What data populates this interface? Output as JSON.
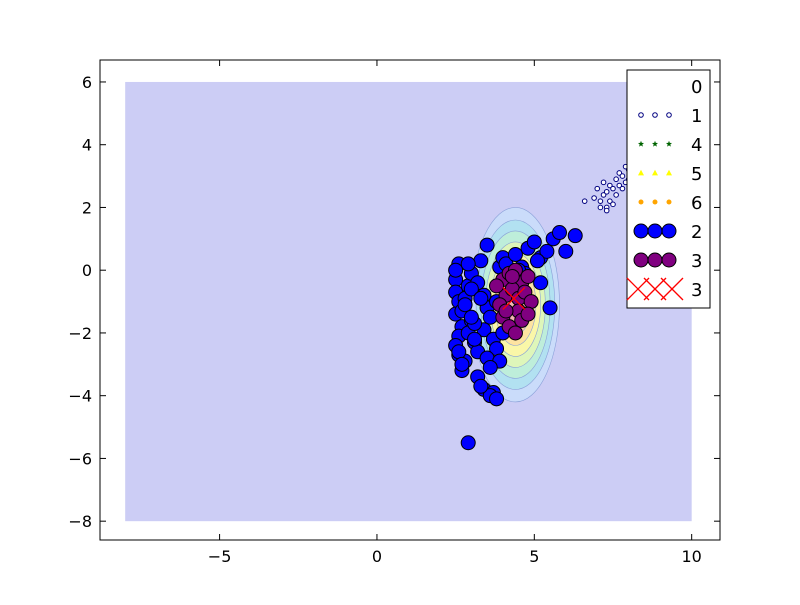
{
  "chart_data": {
    "type": "scatter",
    "title": "",
    "xlabel": "",
    "ylabel": "",
    "xlim": [
      -8.8,
      10.9
    ],
    "ylim": [
      -8.6,
      6.7
    ],
    "xticks": [
      -5,
      0,
      5,
      10
    ],
    "yticks": [
      -8,
      -6,
      -4,
      -2,
      0,
      2,
      4,
      6
    ],
    "grid": false,
    "legend_position": "top-right",
    "background_region": {
      "x": [
        -8,
        10
      ],
      "y": [
        -8,
        6
      ],
      "color": "#cccdf5"
    },
    "density_contours": {
      "center": [
        4.4,
        -1.1
      ],
      "levels": [
        {
          "rx": 1.4,
          "ry": 3.1,
          "color": "#c9dcfa"
        },
        {
          "rx": 1.25,
          "ry": 2.7,
          "color": "#b0e0f0"
        },
        {
          "rx": 1.1,
          "ry": 2.35,
          "color": "#bfeed8"
        },
        {
          "rx": 0.95,
          "ry": 2.0,
          "color": "#dff5b8"
        },
        {
          "rx": 0.8,
          "ry": 1.65,
          "color": "#fbf7a6"
        },
        {
          "rx": 0.65,
          "ry": 1.3,
          "color": "#fde2a0"
        },
        {
          "rx": 0.5,
          "ry": 0.95,
          "color": "#fbc9a8"
        },
        {
          "rx": 0.35,
          "ry": 0.6,
          "color": "#f4b4b4"
        }
      ]
    },
    "series": [
      {
        "name": "0",
        "marker": "none",
        "color": "#ffffff",
        "x": [],
        "y": []
      },
      {
        "name": "1",
        "marker": "circle-open-small",
        "color": "#000080",
        "x": [
          6.9,
          7.0,
          7.1,
          7.2,
          7.2,
          7.3,
          7.3,
          7.4,
          7.4,
          7.5,
          7.5,
          7.6,
          7.6,
          7.7,
          7.7,
          7.8,
          7.8,
          7.9,
          7.9,
          8.0,
          8.0,
          8.1,
          8.1,
          8.2,
          8.2,
          8.3,
          8.3,
          8.4,
          8.4,
          8.5,
          8.5,
          8.6,
          7.1,
          6.6,
          7.3
        ],
        "y": [
          2.3,
          2.6,
          2.2,
          2.4,
          2.8,
          2.0,
          2.5,
          2.2,
          2.7,
          2.1,
          2.6,
          2.9,
          2.4,
          2.7,
          3.1,
          2.6,
          3.0,
          3.3,
          2.8,
          3.2,
          2.9,
          3.4,
          3.1,
          3.3,
          3.6,
          3.2,
          3.5,
          3.4,
          3.7,
          3.6,
          3.9,
          3.8,
          2.0,
          2.2,
          1.9
        ]
      },
      {
        "name": "4",
        "marker": "star-small",
        "color": "#006400",
        "x": [],
        "y": []
      },
      {
        "name": "5",
        "marker": "triangle-small",
        "color": "#ffff00",
        "x": [],
        "y": []
      },
      {
        "name": "6",
        "marker": "circle-small",
        "color": "#ffa500",
        "x": [],
        "y": []
      },
      {
        "name": "2",
        "marker": "circle-large",
        "color": "#0000ff",
        "x": [
          2.5,
          2.5,
          2.6,
          2.5,
          2.7,
          2.6,
          2.5,
          2.6,
          2.8,
          2.7,
          2.6,
          2.5,
          2.9,
          2.8,
          2.7,
          3.0,
          2.9,
          3.1,
          3.2,
          3.0,
          3.3,
          3.2,
          3.4,
          3.5,
          3.6,
          3.4,
          3.7,
          3.8,
          3.9,
          4.0,
          4.1,
          4.2,
          4.4,
          4.6,
          4.8,
          5.0,
          5.2,
          5.4,
          5.6,
          5.8,
          6.0,
          6.3,
          3.5,
          3.2,
          3.4,
          3.7,
          3.6,
          3.8,
          3.3,
          2.9,
          3.0,
          2.8,
          3.1,
          3.5,
          3.9,
          4.3,
          4.7,
          5.1,
          5.5,
          2.9,
          3.3,
          3.0,
          2.6,
          2.7,
          3.6,
          4.0,
          4.5,
          5.2,
          3.1,
          3.8
        ],
        "y": [
          -0.3,
          -0.7,
          -1.0,
          -1.4,
          -1.8,
          -2.1,
          -2.4,
          -2.7,
          -2.9,
          -3.2,
          0.2,
          0.0,
          -0.5,
          -0.9,
          -1.3,
          -1.6,
          -2.0,
          -2.3,
          -2.6,
          -0.1,
          0.3,
          -0.4,
          -0.8,
          -1.2,
          -1.5,
          -1.9,
          -2.2,
          -2.5,
          0.1,
          0.4,
          0.2,
          -0.2,
          0.5,
          0.1,
          0.7,
          0.9,
          0.4,
          0.6,
          1.0,
          1.2,
          0.6,
          1.1,
          0.8,
          -3.4,
          -3.8,
          -3.9,
          -4.0,
          -4.1,
          -3.7,
          -5.5,
          -0.6,
          -1.1,
          -1.7,
          -2.8,
          -2.9,
          -0.3,
          -0.1,
          0.3,
          -1.2,
          0.2,
          -0.9,
          -1.5,
          -2.6,
          -3.0,
          -3.1,
          -2.0,
          0.0,
          -0.4,
          -2.2,
          -1.0
        ]
      },
      {
        "name": "3",
        "marker": "circle-large",
        "color": "#800080",
        "x": [
          4.0,
          4.2,
          4.4,
          4.6,
          4.8,
          4.1,
          4.3,
          4.5,
          4.7,
          3.9,
          4.0,
          4.5,
          4.9,
          4.2,
          4.6,
          4.4,
          3.8,
          4.8,
          4.1,
          4.3
        ],
        "y": [
          -0.3,
          -0.1,
          0.0,
          -0.4,
          -0.2,
          -0.8,
          -0.6,
          -0.9,
          -0.7,
          -1.1,
          -1.5,
          -1.3,
          -1.0,
          -1.8,
          -1.6,
          -2.0,
          -0.5,
          -1.4,
          -1.3,
          -0.2
        ]
      },
      {
        "name": "3",
        "marker": "x-large",
        "color": "#ff0000",
        "x": [
          4.35
        ],
        "y": [
          -0.9
        ]
      }
    ]
  }
}
